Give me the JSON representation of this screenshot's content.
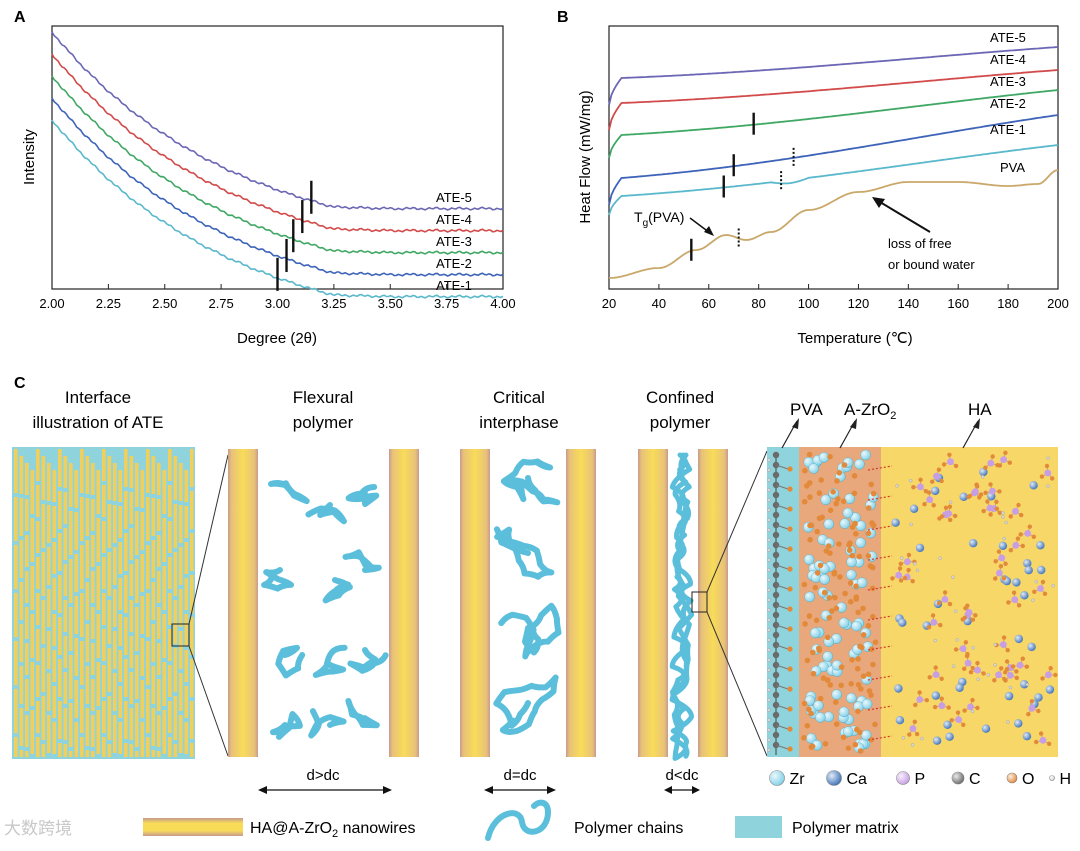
{
  "panel_labels": {
    "a": "A",
    "b": "B",
    "c": "C"
  },
  "chart_data": [
    {
      "type": "line",
      "xlabel": "Degree (2θ)",
      "ylabel": "Intensity",
      "xlim": [
        2.0,
        4.0
      ],
      "x_ticks": [
        "2.00",
        "2.25",
        "2.50",
        "2.75",
        "3.00",
        "3.25",
        "3.50",
        "3.75",
        "4.00"
      ],
      "y_ticks": "none",
      "grid": false,
      "series": [
        {
          "name": "ATE-5",
          "color": "#6b67b5",
          "marker_x": 3.15
        },
        {
          "name": "ATE-4",
          "color": "#d24a4a",
          "marker_x": 3.11
        },
        {
          "name": "ATE-3",
          "color": "#3fa864",
          "marker_x": 3.07
        },
        {
          "name": "ATE-2",
          "color": "#3d64b8",
          "marker_x": 3.04
        },
        {
          "name": "ATE-1",
          "color": "#5ab8cc",
          "marker_x": 3.0
        }
      ]
    },
    {
      "type": "line",
      "xlabel": "Temperature (℃)",
      "ylabel": "Heat Flow (mW/mg)",
      "xlim": [
        20,
        200
      ],
      "x_ticks": [
        "20",
        "40",
        "60",
        "80",
        "100",
        "120",
        "140",
        "160",
        "180",
        "200"
      ],
      "y_ticks": "none",
      "grid": false,
      "series": [
        {
          "name": "ATE-5",
          "color": "#6b67b5"
        },
        {
          "name": "ATE-4",
          "color": "#d24a4a"
        },
        {
          "name": "ATE-3",
          "color": "#3fa864",
          "tg_marker": 78
        },
        {
          "name": "ATE-2",
          "color": "#3d64b8",
          "tg_marker": 70,
          "dotted_marker": 94
        },
        {
          "name": "ATE-1",
          "color": "#5ab8cc",
          "tg_marker": 66,
          "dotted_marker": 89
        },
        {
          "name": "PVA",
          "color": "#c9a86a",
          "tg_marker": 53,
          "dotted_marker": 72
        }
      ],
      "annotations": {
        "tg_prefix": "T",
        "tg_sub": "g",
        "tg_suffix": "(PVA)",
        "water_line1": "loss of free",
        "water_line2": "or bound water"
      }
    }
  ],
  "panel_c": {
    "col1_line1": "Interface",
    "col1_line2": "illustration of ATE",
    "col2_line1": "Flexural",
    "col2_line2": "polymer",
    "col3_line1": "Critical",
    "col3_line2": "interphase",
    "col4_line1": "Confined",
    "col4_line2": "polymer",
    "layer_pva": "PVA",
    "layer_zro_main": "A-ZrO",
    "layer_zro_sub": "2",
    "layer_ha": "HA",
    "spacing_gt": "d>dc",
    "spacing_eq": "d=dc",
    "spacing_lt": "d<dc",
    "atoms": [
      {
        "symbol": "Zr",
        "color": "#7fd0e8"
      },
      {
        "symbol": "Ca",
        "color": "#3c72b8"
      },
      {
        "symbol": "P",
        "color": "#c79ee6"
      },
      {
        "symbol": "C",
        "color": "#6a6a6a"
      },
      {
        "symbol": "O",
        "color": "#e28a3a"
      },
      {
        "symbol": "H",
        "color": "#d8d8d8"
      }
    ]
  },
  "legend": {
    "nanowire_prefix": "HA@A-ZrO",
    "nanowire_sub": "2",
    "nanowire_suffix": " nanowires",
    "chains": "Polymer chains",
    "matrix": "Polymer matrix"
  },
  "watermark": "大数跨境",
  "colors": {
    "wire_yellow": "#f5d24a",
    "wire_edge": "#c99a8a",
    "matrix_cyan": "#8fd4dc",
    "chain_blue": "#5bbfdc",
    "zro_orange": "#e8a87c",
    "ha_yellow": "#f7d768"
  }
}
